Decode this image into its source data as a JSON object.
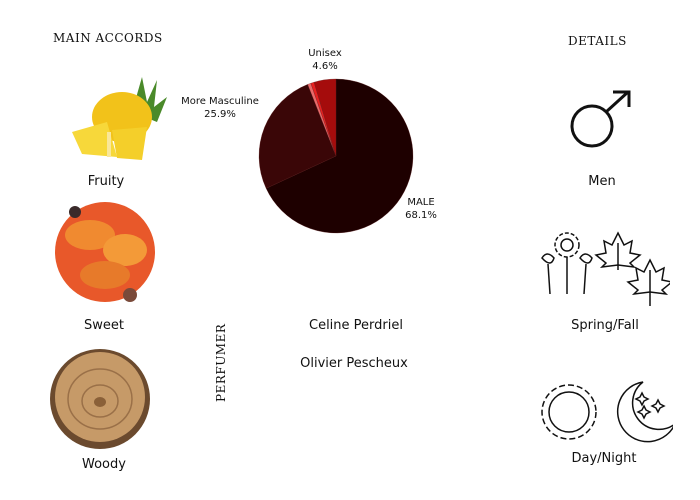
{
  "headings": {
    "main_accords": "MAIN ACCORDS",
    "details": "DETAILS",
    "perfumer": "PERFUMER"
  },
  "accords": [
    {
      "label": "Fruity",
      "icon": "pineapple-image"
    },
    {
      "label": "Sweet",
      "icon": "dried-fruit-image"
    },
    {
      "label": "Woody",
      "icon": "wood-slice-image"
    }
  ],
  "details": [
    {
      "label": "Men",
      "icon": "male-symbol-icon"
    },
    {
      "label": "Spring/Fall",
      "icon": "flowers-and-leaves-icon"
    },
    {
      "label": "Day/Night",
      "icon": "sun-and-moon-icon"
    }
  ],
  "perfumers": [
    "Celine Perdriel",
    "Olivier Pescheux"
  ],
  "chart_data": {
    "type": "pie",
    "start": "top",
    "direction": "clockwise",
    "slices": [
      {
        "name": "MALE",
        "value": 68.1,
        "label": "68.1%",
        "color": "#1e0000"
      },
      {
        "name": "More Masculine",
        "value": 25.9,
        "label": "25.9%",
        "color": "#3a0607"
      },
      {
        "name": "",
        "value": 0.7,
        "label": "",
        "color": "#e86a6a"
      },
      {
        "name": "",
        "value": 0.7,
        "label": "",
        "color": "#e82020"
      },
      {
        "name": "Unisex",
        "value": 4.6,
        "label": "4.6%",
        "color": "#a50c0c"
      }
    ]
  }
}
